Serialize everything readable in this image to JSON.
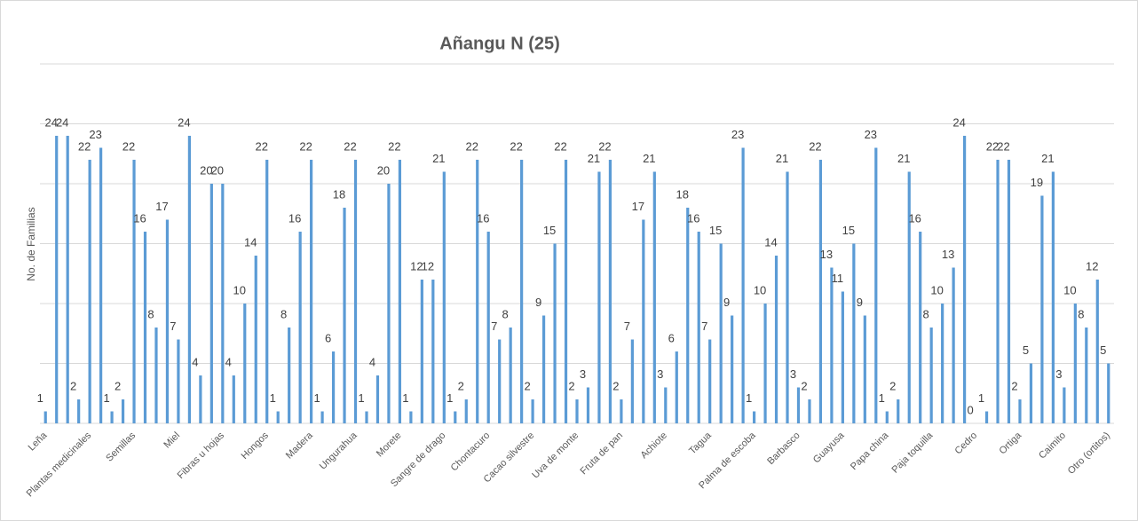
{
  "chart_data": {
    "type": "bar",
    "title": "Añangu N (25)",
    "y_label": "No. de Familias",
    "color": "#5b9bd5",
    "grid": true,
    "ylim": [
      0,
      30
    ],
    "yticks": [
      0,
      5,
      10,
      15,
      20,
      25,
      30
    ],
    "categories": [
      "Leña",
      null,
      null,
      null,
      "Plantas medicinales",
      null,
      null,
      null,
      "Semillas",
      null,
      null,
      null,
      "Miel",
      null,
      null,
      null,
      "Fibras u hojas",
      null,
      null,
      null,
      "Hongos",
      null,
      null,
      null,
      "Madera",
      null,
      null,
      null,
      "Ungurahua",
      null,
      null,
      null,
      "Morete",
      null,
      null,
      null,
      "Sangre de drago",
      null,
      null,
      null,
      "Chontacuro",
      null,
      null,
      null,
      "Cacao silvestre",
      null,
      null,
      null,
      "Uva de monte",
      null,
      null,
      null,
      "Fruta de pan",
      null,
      null,
      null,
      "Achiote",
      null,
      null,
      null,
      "Tagua",
      null,
      null,
      null,
      "Palma de escoba",
      null,
      null,
      null,
      "Barbasco",
      null,
      null,
      null,
      "Guayusa",
      null,
      null,
      null,
      "Papa china",
      null,
      null,
      null,
      "Paja toquilla",
      null,
      null,
      null,
      "Cedro",
      null,
      null,
      null,
      "Ortiga",
      null,
      null,
      null,
      "Caimito",
      null,
      null,
      null,
      "Otro (ortitos)"
    ],
    "values": [
      1,
      24,
      24,
      2,
      22,
      23,
      1,
      2,
      22,
      16,
      8,
      17,
      7,
      24,
      4,
      20,
      20,
      4,
      10,
      14,
      22,
      1,
      8,
      16,
      22,
      1,
      6,
      18,
      22,
      1,
      4,
      20,
      22,
      1,
      12,
      12,
      21,
      1,
      2,
      22,
      16,
      7,
      8,
      22,
      2,
      9,
      15,
      22,
      2,
      3,
      21,
      22,
      2,
      7,
      17,
      21,
      3,
      6,
      18,
      16,
      7,
      15,
      9,
      23,
      1,
      10,
      14,
      21,
      3,
      2,
      22,
      13,
      11,
      15,
      9,
      23,
      1,
      2,
      21,
      16,
      8,
      10,
      13,
      24,
      0,
      1,
      22,
      22,
      2,
      5,
      19,
      21,
      3,
      10,
      8,
      12,
      5
    ]
  }
}
